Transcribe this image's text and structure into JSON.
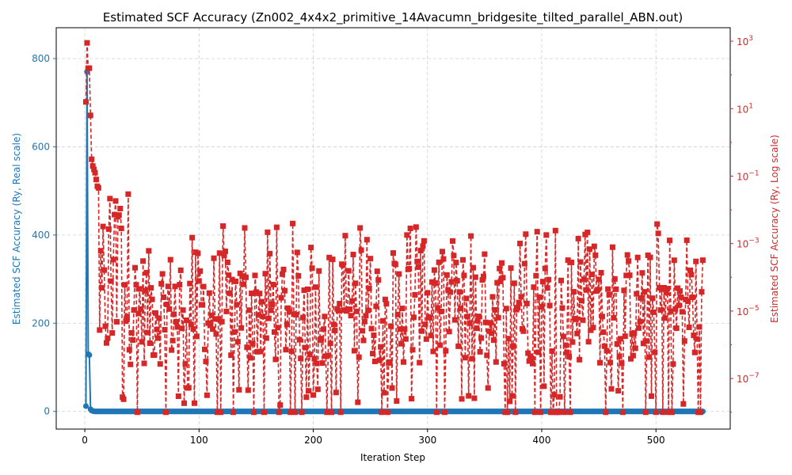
{
  "chart_data": {
    "type": "line",
    "title": "Estimated SCF Accuracy (Zn002_4x4x2_primitive_14Avacumn_bridgesite_tilted_parallel_ABN.out)",
    "xlabel": "Iteration Step",
    "ylabel_left": "Estimated SCF Accuracy (Ry, Real scale)",
    "ylabel_right": "Estimated SCF Accuracy (Ry, Log scale)",
    "xlim": [
      -25,
      565
    ],
    "ylim_left": [
      -40,
      870
    ],
    "ylim_right_log10": [
      -8.5,
      3.4
    ],
    "grid": true,
    "x_ticks": [
      "0",
      "100",
      "200",
      "300",
      "400",
      "500"
    ],
    "y_left_ticks": [
      "0",
      "200",
      "400",
      "600",
      "800"
    ],
    "y_right_ticks": [
      {
        "base": "10",
        "exp": "−7",
        "log": -7
      },
      {
        "base": "10",
        "exp": "−5",
        "log": -5
      },
      {
        "base": "10",
        "exp": "−3",
        "log": -3
      },
      {
        "base": "10",
        "exp": "−1",
        "log": -1
      },
      {
        "base": "10",
        "exp": "1",
        "log": 1
      },
      {
        "base": "10",
        "exp": "3",
        "log": 3
      }
    ],
    "series": [
      {
        "name": "",
        "axis": "left",
        "scale": "linear",
        "color": "#1f77b4",
        "marker": "circle",
        "linestyle": "solid",
        "x_start": 1,
        "x_end": 541,
        "x_head": [
          1,
          2,
          3,
          4,
          5,
          6,
          7,
          8
        ],
        "values_head": [
          12,
          770,
          130,
          128,
          5,
          2,
          1,
          0.5
        ],
        "tail_value": 0
      },
      {
        "name": "",
        "axis": "right",
        "scale": "log",
        "color": "#d62728",
        "marker": "square",
        "linestyle": "dashed",
        "x_start": 1,
        "x_end": 541,
        "log10_head": [
          1.2,
          2.95,
          2.2,
          2.2,
          0.8,
          -0.5,
          -0.7,
          -0.8,
          -0.9,
          -1.1,
          -1.3,
          -1.35
        ],
        "log10_tail_min": -8.0,
        "log10_tail_max": -2.0,
        "log10_tail_typical": -4.8
      }
    ]
  }
}
